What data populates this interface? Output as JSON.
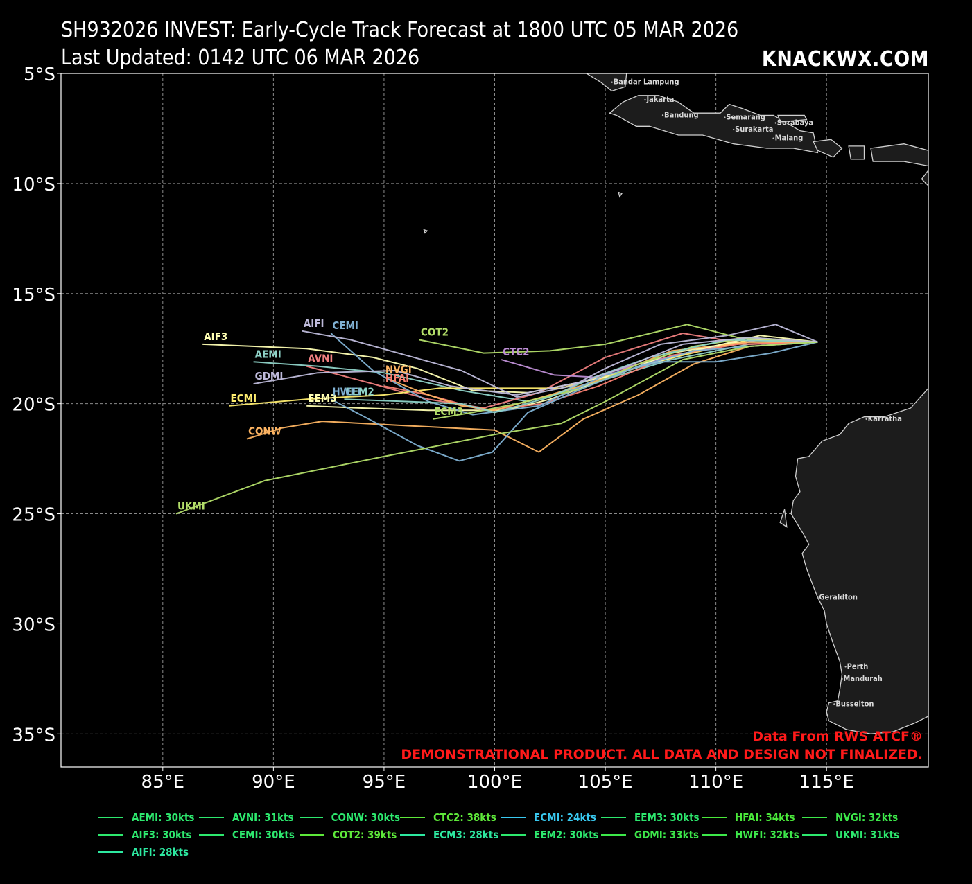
{
  "header": {
    "title_line1": "SH932026 INVEST: Early-Cycle Track Forecast at 1800 UTC 05 MAR 2026",
    "title_line2": "Last Updated: 0142 UTC 06 MAR 2026",
    "brand": "KNACKWX.COM"
  },
  "notes": {
    "source": "Data From RWS ATCF®",
    "disclaimer": "DEMONSTRATIONAL PRODUCT. ALL DATA AND DESIGN NOT FINALIZED."
  },
  "colors": {
    "background": "#000000",
    "land": "#1c1c1c",
    "coast": "#d0d0d0",
    "grid": "#8a8a8a",
    "note_red": "#ff1a1a"
  },
  "axes": {
    "lat_labels": [
      "5°S",
      "10°S",
      "15°S",
      "20°S",
      "25°S",
      "30°S",
      "35°S"
    ],
    "lat_values": [
      -5,
      -10,
      -15,
      -20,
      -25,
      -30,
      -35
    ],
    "lon_labels": [
      "85°E",
      "90°E",
      "95°E",
      "100°E",
      "105°E",
      "110°E",
      "115°E"
    ],
    "lon_values": [
      85,
      90,
      95,
      100,
      105,
      110,
      115
    ],
    "lon_range": [
      80.4,
      119.6
    ],
    "lat_range": [
      -36.5,
      -5.0
    ]
  },
  "cities": [
    {
      "name": "Bandar Lampung",
      "lon": 105.3,
      "lat": -5.4
    },
    {
      "name": "Jakarta",
      "lon": 106.8,
      "lat": -6.2
    },
    {
      "name": "Bandung",
      "lon": 107.6,
      "lat": -6.9
    },
    {
      "name": "Semarang",
      "lon": 110.4,
      "lat": -7.0
    },
    {
      "name": "Surakarta",
      "lon": 110.8,
      "lat": -7.55
    },
    {
      "name": "Surabaya",
      "lon": 112.7,
      "lat": -7.25
    },
    {
      "name": "Malang",
      "lon": 112.6,
      "lat": -7.95
    },
    {
      "name": "Karratha",
      "lon": 116.8,
      "lat": -20.7
    },
    {
      "name": "Geraldton",
      "lon": 114.6,
      "lat": -28.8
    },
    {
      "name": "Perth",
      "lon": 115.86,
      "lat": -31.95
    },
    {
      "name": "Mandurah",
      "lon": 115.7,
      "lat": -32.5
    },
    {
      "name": "Busselton",
      "lon": 115.35,
      "lat": -33.65
    }
  ],
  "tracks": [
    {
      "id": "AEMI",
      "color": "#8fd3c8",
      "label": "AEMI",
      "points": [
        [
          114.6,
          -17.2
        ],
        [
          111.5,
          -17.3
        ],
        [
          108,
          -18
        ],
        [
          104,
          -19.2
        ],
        [
          101.5,
          -19.9
        ],
        [
          98.5,
          -19.4
        ],
        [
          95,
          -18.6
        ],
        [
          92,
          -18.3
        ],
        [
          89.1,
          -18.1
        ]
      ]
    },
    {
      "id": "AVNI",
      "color": "#f08080",
      "label": "AVNI",
      "points": [
        [
          114.6,
          -17.2
        ],
        [
          111.5,
          -17.3
        ],
        [
          108.5,
          -16.8
        ],
        [
          105,
          -17.9
        ],
        [
          102,
          -19.5
        ],
        [
          99.5,
          -20.2
        ],
        [
          97,
          -19.8
        ],
        [
          94.5,
          -19.1
        ],
        [
          91.5,
          -18.3
        ]
      ]
    },
    {
      "id": "CONW",
      "color": "#fdb462",
      "label": "CONW",
      "points": [
        [
          114.6,
          -17.2
        ],
        [
          111.5,
          -17.4
        ],
        [
          109,
          -18.2
        ],
        [
          106.5,
          -19.6
        ],
        [
          104,
          -20.7
        ],
        [
          102,
          -22.2
        ],
        [
          100,
          -21.2
        ],
        [
          96,
          -21
        ],
        [
          92.2,
          -20.8
        ],
        [
          90.4,
          -21.1
        ],
        [
          88.8,
          -21.6
        ]
      ]
    },
    {
      "id": "CTC2",
      "color": "#bf8fd6",
      "label": "CTC2",
      "points": [
        [
          114.6,
          -17.2
        ],
        [
          112,
          -17.1
        ],
        [
          109.5,
          -17.5
        ],
        [
          106.5,
          -18.2
        ],
        [
          104.5,
          -18.8
        ],
        [
          102.7,
          -18.7
        ],
        [
          100.3,
          -18.0
        ]
      ]
    },
    {
      "id": "ECMI",
      "color": "#ffed6f",
      "label": "ECMI",
      "points": [
        [
          114.6,
          -17.2
        ],
        [
          111.5,
          -17.1
        ],
        [
          108.5,
          -17.8
        ],
        [
          105.5,
          -18.6
        ],
        [
          103,
          -19.3
        ],
        [
          100,
          -19.3
        ],
        [
          97.5,
          -19.3
        ],
        [
          95,
          -19.6
        ],
        [
          91.5,
          -19.8
        ],
        [
          88,
          -20.1
        ]
      ]
    },
    {
      "id": "EEM3",
      "color": "#ffffb3",
      "label": "EEM3",
      "points": [
        [
          114.6,
          -17.2
        ],
        [
          111,
          -17.2
        ],
        [
          108,
          -17.7
        ],
        [
          105,
          -18.9
        ],
        [
          102.5,
          -19.8
        ],
        [
          100.5,
          -20.3
        ],
        [
          97,
          -20.3
        ],
        [
          94,
          -20.2
        ],
        [
          91.5,
          -20.1
        ]
      ]
    },
    {
      "id": "HFAI",
      "color": "#fb8072",
      "label": "HFAI",
      "points": [
        [
          114.6,
          -17.2
        ],
        [
          111,
          -17.3
        ],
        [
          108,
          -17.8
        ],
        [
          104.7,
          -19.2
        ],
        [
          102.2,
          -20.0
        ],
        [
          99.5,
          -20.3
        ],
        [
          97,
          -19.6
        ],
        [
          95,
          -19.2
        ]
      ]
    },
    {
      "id": "NVGI",
      "color": "#fdb462",
      "label": "NVGI",
      "points": [
        [
          114.6,
          -17.2
        ],
        [
          111.5,
          -17.2
        ],
        [
          108,
          -17.6
        ],
        [
          104.5,
          -19.0
        ],
        [
          102.5,
          -19.6
        ],
        [
          100,
          -20.3
        ],
        [
          98.5,
          -20.1
        ],
        [
          97,
          -19.6
        ],
        [
          95,
          -18.8
        ]
      ]
    },
    {
      "id": "AIF3",
      "color": "#ffffb3",
      "label": "AIF3",
      "points": [
        [
          114.6,
          -17.2
        ],
        [
          112,
          -16.9
        ],
        [
          109,
          -17.6
        ],
        [
          105,
          -18.8
        ],
        [
          101.5,
          -19.5
        ],
        [
          99,
          -19.4
        ],
        [
          96.5,
          -18.4
        ],
        [
          94.5,
          -17.9
        ],
        [
          91.5,
          -17.5
        ],
        [
          86.8,
          -17.3
        ]
      ]
    },
    {
      "id": "CEMI",
      "color": "#80b1d3",
      "label": "CEMI",
      "points": [
        [
          114.6,
          -17.2
        ],
        [
          112.5,
          -17.7
        ],
        [
          110,
          -18.1
        ],
        [
          107.5,
          -18.1
        ],
        [
          105,
          -18.7
        ],
        [
          102,
          -20.1
        ],
        [
          99,
          -20.5
        ],
        [
          97,
          -19.9
        ],
        [
          94.5,
          -18.5
        ],
        [
          92.6,
          -16.8
        ]
      ]
    },
    {
      "id": "COT2",
      "color": "#b3de69",
      "label": "COT2",
      "points": [
        [
          114.6,
          -17.2
        ],
        [
          111,
          -17.0
        ],
        [
          108.7,
          -16.4
        ],
        [
          105,
          -17.3
        ],
        [
          102.5,
          -17.6
        ],
        [
          99.5,
          -17.7
        ],
        [
          96.6,
          -17.1
        ]
      ]
    },
    {
      "id": "ECM3",
      "color": "#b3de69",
      "label": "ECM3",
      "points": [
        [
          114.6,
          -17.2
        ],
        [
          111.5,
          -17.0
        ],
        [
          109,
          -17.4
        ],
        [
          106.5,
          -18.2
        ],
        [
          104,
          -19.3
        ],
        [
          101,
          -20.0
        ],
        [
          99,
          -20.4
        ],
        [
          97.2,
          -20.7
        ]
      ]
    },
    {
      "id": "EEM2",
      "color": "#8dd3c7",
      "label": "EEM2",
      "points": [
        [
          114.6,
          -17.2
        ],
        [
          110.5,
          -17.1
        ],
        [
          107,
          -17.9
        ],
        [
          104.5,
          -18.8
        ],
        [
          102.5,
          -19.7
        ],
        [
          100,
          -20.4
        ],
        [
          98.5,
          -20.0
        ],
        [
          96,
          -19.9
        ],
        [
          93.2,
          -19.8
        ]
      ]
    },
    {
      "id": "GDMI",
      "color": "#bebada",
      "label": "GDMI",
      "points": [
        [
          114.6,
          -17.2
        ],
        [
          111.5,
          -17.0
        ],
        [
          108.5,
          -17.3
        ],
        [
          106,
          -18.3
        ],
        [
          104,
          -19.0
        ],
        [
          101,
          -19.6
        ],
        [
          98,
          -19.2
        ],
        [
          95.5,
          -18.5
        ],
        [
          92,
          -18.6
        ],
        [
          89.1,
          -19.1
        ]
      ]
    },
    {
      "id": "HWFI",
      "color": "#80b1d3",
      "label": "HWFI",
      "points": [
        [
          114.6,
          -17.2
        ],
        [
          111.5,
          -17.4
        ],
        [
          109,
          -17.6
        ],
        [
          106.5,
          -18.3
        ],
        [
          104,
          -19.3
        ],
        [
          101.5,
          -20.4
        ],
        [
          99.9,
          -22.2
        ],
        [
          98.4,
          -22.6
        ],
        [
          96.5,
          -21.9
        ],
        [
          94.5,
          -20.8
        ],
        [
          92.6,
          -19.8
        ]
      ]
    },
    {
      "id": "UKMI",
      "color": "#b3de69",
      "label": "UKMI",
      "points": [
        [
          114.6,
          -17.2
        ],
        [
          111.5,
          -17.4
        ],
        [
          108.5,
          -18.0
        ],
        [
          105,
          -19.9
        ],
        [
          103,
          -20.9
        ],
        [
          100,
          -21.4
        ],
        [
          95,
          -22.4
        ],
        [
          89.6,
          -23.5
        ],
        [
          85.6,
          -25.0
        ]
      ]
    },
    {
      "id": "AIFI",
      "color": "#bebada",
      "label": "AIFI",
      "points": [
        [
          114.6,
          -17.2
        ],
        [
          112.7,
          -16.4
        ],
        [
          110.5,
          -16.9
        ],
        [
          107.5,
          -17.3
        ],
        [
          105,
          -18.4
        ],
        [
          103.5,
          -19.2
        ],
        [
          101,
          -19.7
        ],
        [
          98.5,
          -18.5
        ],
        [
          96,
          -17.8
        ],
        [
          93.5,
          -17.1
        ],
        [
          91.3,
          -16.7
        ]
      ]
    }
  ],
  "legend": [
    {
      "id": "AEMI",
      "text": "AEMI: 30kts",
      "color": "#2de86e"
    },
    {
      "id": "AVNI",
      "text": "AVNI: 31kts",
      "color": "#2de86e"
    },
    {
      "id": "CONW",
      "text": "CONW: 30kts",
      "color": "#2de86e"
    },
    {
      "id": "CTC2",
      "text": "CTC2: 38kts",
      "color": "#5ee83a"
    },
    {
      "id": "ECMI",
      "text": "ECMI: 24kts",
      "color": "#39c9f0"
    },
    {
      "id": "EEM3",
      "text": "EEM3: 30kts",
      "color": "#2de86e"
    },
    {
      "id": "HFAI",
      "text": "HFAI: 34kts",
      "color": "#4ae83a"
    },
    {
      "id": "NVGI",
      "text": "NVGI: 32kts",
      "color": "#3de84a"
    },
    {
      "id": "AIF3",
      "text": "AIF3: 30kts",
      "color": "#2de86e"
    },
    {
      "id": "CEMI",
      "text": "CEMI: 30kts",
      "color": "#2de86e"
    },
    {
      "id": "COT2",
      "text": "COT2: 39kts",
      "color": "#5ee83a"
    },
    {
      "id": "ECM3",
      "text": "ECM3: 28kts",
      "color": "#2de8a0"
    },
    {
      "id": "EEM2",
      "text": "EEM2: 30kts",
      "color": "#2de86e"
    },
    {
      "id": "GDMI",
      "text": "GDMI: 33kts",
      "color": "#3de84a"
    },
    {
      "id": "HWFI",
      "text": "HWFI: 32kts",
      "color": "#3de84a"
    },
    {
      "id": "UKMI",
      "text": "UKMI: 31kts",
      "color": "#2de86e"
    },
    {
      "id": "AIFI",
      "text": "AIFI: 28kts",
      "color": "#2de8a0"
    }
  ]
}
